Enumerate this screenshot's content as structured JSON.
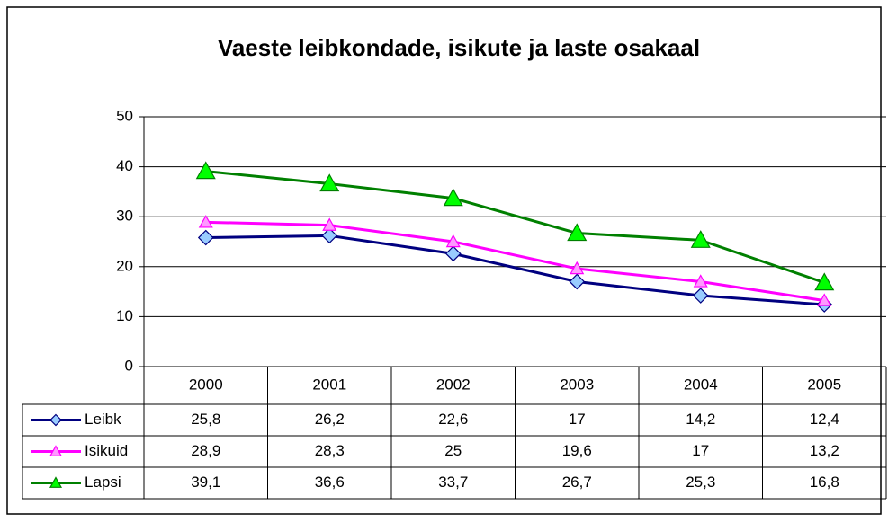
{
  "chart_data": {
    "type": "line",
    "title": "Vaeste leibkondade, isikute ja laste osakaal",
    "categories": [
      "2000",
      "2001",
      "2002",
      "2003",
      "2004",
      "2005"
    ],
    "series": [
      {
        "name": "Leibk",
        "color": "#000080",
        "marker": "diamond",
        "marker_color": "#99ccff",
        "values": [
          25.8,
          26.2,
          22.6,
          17,
          14.2,
          12.4
        ],
        "value_labels": [
          "25,8",
          "26,2",
          "22,6",
          "17",
          "14,2",
          "12,4"
        ]
      },
      {
        "name": "Isikuid",
        "color": "#ff00ff",
        "marker": "triangle",
        "marker_color": "#ff99ff",
        "values": [
          28.9,
          28.3,
          25,
          19.6,
          17,
          13.2
        ],
        "value_labels": [
          "28,9",
          "28,3",
          "25",
          "19,6",
          "17",
          "13,2"
        ]
      },
      {
        "name": "Lapsi",
        "color": "#008000",
        "marker": "triangle",
        "marker_color": "#00ff00",
        "values": [
          39.1,
          36.6,
          33.7,
          26.7,
          25.3,
          16.8
        ],
        "value_labels": [
          "39,1",
          "36,6",
          "33,7",
          "26,7",
          "25,3",
          "16,8"
        ]
      }
    ],
    "ylim": [
      0,
      50
    ],
    "yticks": [
      0,
      10,
      20,
      30,
      40,
      50
    ],
    "grid": true
  }
}
